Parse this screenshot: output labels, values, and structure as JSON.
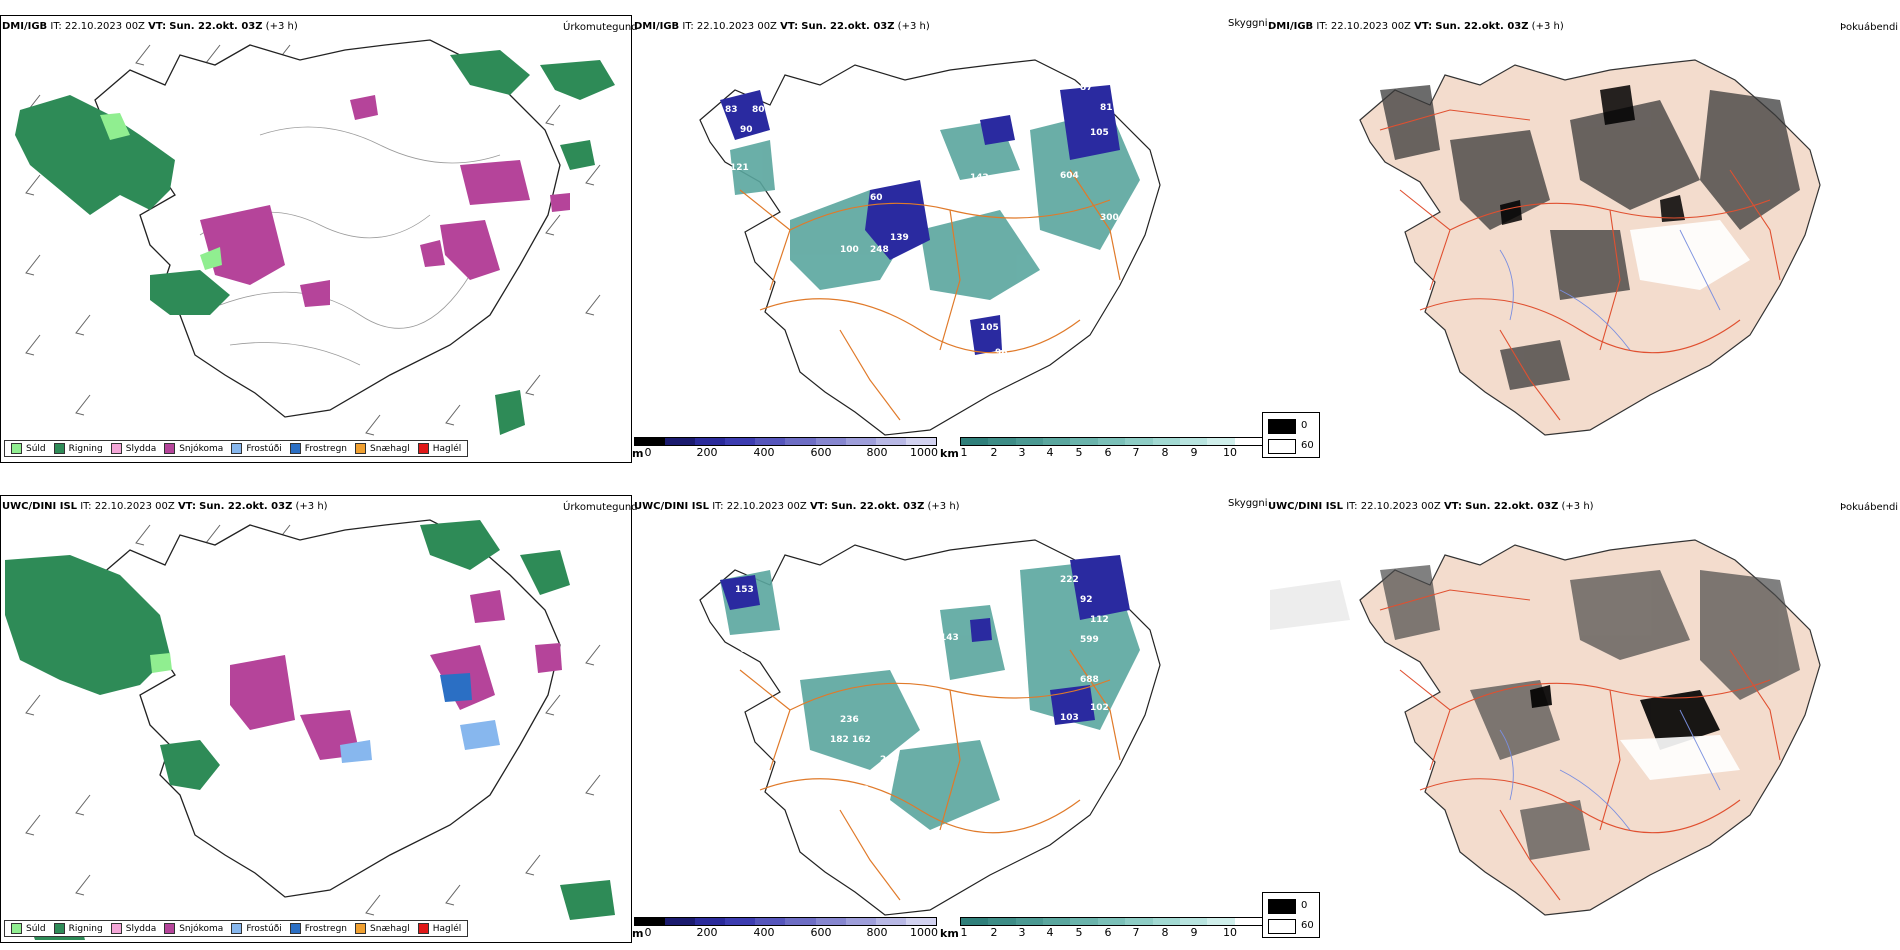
{
  "rows": [
    {
      "model": "DMI/IGB",
      "it_label": "IT:",
      "it_value": "22.10.2023 00Z",
      "vt_label": "VT:",
      "vt_value": "Sun. 22.okt. 03Z",
      "lead": "(+3 h)",
      "left_title": "Úrkomutegund",
      "mid_title": "Skyggni",
      "right_title": "Þokuábendi"
    },
    {
      "model": "UWC/DINI ISL",
      "it_label": "IT:",
      "it_value": "22.10.2023 00Z",
      "vt_label": "VT:",
      "vt_value": "Sun. 22.okt. 03Z",
      "lead": "(+3 h)",
      "left_title": "Úrkomutegund",
      "mid_title": "Skyggni",
      "right_title": "Þokuábendi"
    }
  ],
  "precip_legend": [
    {
      "label": "Súld",
      "color": "#90ee90"
    },
    {
      "label": "Rigning",
      "color": "#2e8b57"
    },
    {
      "label": "Slydda",
      "color": "#f4a6d7"
    },
    {
      "label": "Snjókoma",
      "color": "#b5449a"
    },
    {
      "label": "Frostúði",
      "color": "#87b7ee"
    },
    {
      "label": "Frostregn",
      "color": "#2b6fc4"
    },
    {
      "label": "Snæhagl",
      "color": "#f0a030"
    },
    {
      "label": "Haglél",
      "color": "#e01818"
    }
  ],
  "vis_scale_m": {
    "unit": "m",
    "ticks": [
      "0",
      "200",
      "400",
      "600",
      "800",
      "1000"
    ],
    "colors": [
      "#000000",
      "#1a1a6e",
      "#2a2a9a",
      "#3c3cb0",
      "#5555bb",
      "#6d6dc4",
      "#8686cf",
      "#9e9eda",
      "#b8b8e5",
      "#d2d2f0"
    ]
  },
  "vis_scale_km": {
    "unit": "km",
    "ticks": [
      "1",
      "2",
      "3",
      "4",
      "5",
      "6",
      "7",
      "8",
      "9",
      "10"
    ],
    "colors": [
      "#2f7f7a",
      "#3d8c86",
      "#4b9992",
      "#5aa69e",
      "#6ab3ab",
      "#7bc0b8",
      "#8ecdc5",
      "#a2d9d2",
      "#b8e4df",
      "#d0efeb",
      "#ffffff"
    ]
  },
  "fog_key": [
    {
      "value": "0",
      "color": "#000000"
    },
    {
      "value": "60",
      "color": "#ffffff"
    }
  ],
  "colors": {
    "rain": "#2e8b57",
    "snow": "#b5449a",
    "vis_low": "#2a2aa0",
    "vis_mid": "#5aa69e",
    "roads": "#e07a2a",
    "land_fog": "#f3dccd"
  }
}
